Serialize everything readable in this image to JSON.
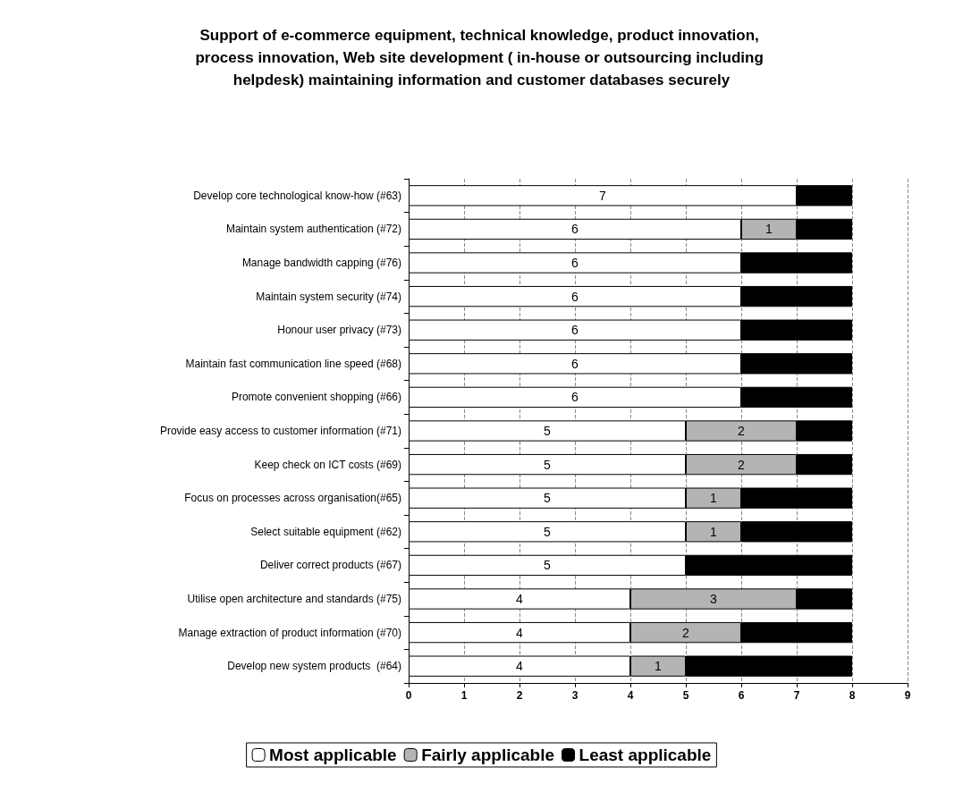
{
  "chart_data": {
    "type": "bar",
    "orientation": "horizontal",
    "stacked": true,
    "title": "Support of e-commerce equipment, technical knowledge, product innovation, process innovation, Web site development ( in-house or outsourcing including helpdesk) maintaining information and customer databases securely",
    "categories": [
      "Develop core technological know-how (#63)",
      "Maintain system authentication (#72)",
      "Manage bandwidth capping (#76)",
      "Maintain system security (#74)",
      "Honour user privacy (#73)",
      "Maintain fast communication line speed (#68)",
      "Promote convenient shopping (#66)",
      "Provide easy access to customer information (#71)",
      "Keep check on ICT costs (#69)",
      "Focus on processes across organisation(#65)",
      "Select suitable equipment (#62)",
      "Deliver correct products (#67)",
      "Utilise open architecture and standards (#75)",
      "Manage extraction of product information (#70)",
      "Develop new system products  (#64)"
    ],
    "series": [
      {
        "name": "Most applicable",
        "color": "#ffffff",
        "values": [
          7,
          6,
          6,
          6,
          6,
          6,
          6,
          5,
          5,
          5,
          5,
          5,
          4,
          4,
          4
        ],
        "value_labels": [
          "7",
          "6",
          "6",
          "6",
          "6",
          "6",
          "6",
          "5",
          "5",
          "5",
          "5",
          "5",
          "4",
          "4",
          "4"
        ]
      },
      {
        "name": "Fairly applicable",
        "color": "#b4b4b4",
        "values": [
          0,
          1,
          0,
          0,
          0,
          0,
          0,
          2,
          2,
          1,
          1,
          0,
          3,
          2,
          1
        ],
        "value_labels": [
          null,
          "1",
          null,
          null,
          null,
          null,
          null,
          "2",
          "2",
          "1",
          "1",
          null,
          "3",
          "2",
          "1"
        ]
      },
      {
        "name": "Least applicable",
        "color": "#000000",
        "values": [
          1,
          1,
          2,
          2,
          2,
          2,
          2,
          1,
          1,
          2,
          2,
          3,
          1,
          2,
          3
        ]
      }
    ],
    "xlim": [
      0,
      9
    ],
    "xticks": [
      0,
      1,
      2,
      3,
      4,
      5,
      6,
      7,
      8,
      9
    ],
    "grid": "x",
    "legend": "bottom"
  }
}
